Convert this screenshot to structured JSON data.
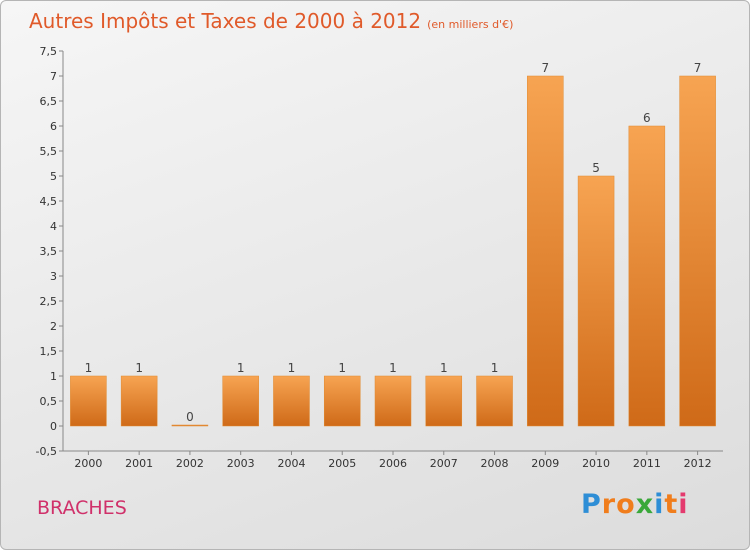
{
  "title": "Autres Impôts et Taxes de 2000 à 2012",
  "title_unit": "(en milliers d'€)",
  "commune": "BRACHES",
  "logo": {
    "letters": [
      "P",
      "r",
      "o",
      "x",
      "i",
      "t",
      "i"
    ],
    "colors": [
      "#2e8ed6",
      "#f07d1c",
      "#f07d1c",
      "#3aa83a",
      "#2e8ed6",
      "#f07d1c",
      "#e43a6e"
    ]
  },
  "chart_data": {
    "type": "bar",
    "categories": [
      "2000",
      "2001",
      "2002",
      "2003",
      "2004",
      "2005",
      "2006",
      "2007",
      "2008",
      "2009",
      "2010",
      "2011",
      "2012"
    ],
    "values": [
      1,
      1,
      0,
      1,
      1,
      1,
      1,
      1,
      1,
      7,
      5,
      6,
      7
    ],
    "y_ticks": [
      "-0,5",
      "0",
      "0,5",
      "1",
      "1,5",
      "2",
      "2,5",
      "3",
      "3,5",
      "4",
      "4,5",
      "5",
      "5,5",
      "6",
      "6,5",
      "7",
      "7,5"
    ],
    "ylim": [
      -0.5,
      7.5
    ],
    "grid": false,
    "bar_color": "#f0912e"
  }
}
